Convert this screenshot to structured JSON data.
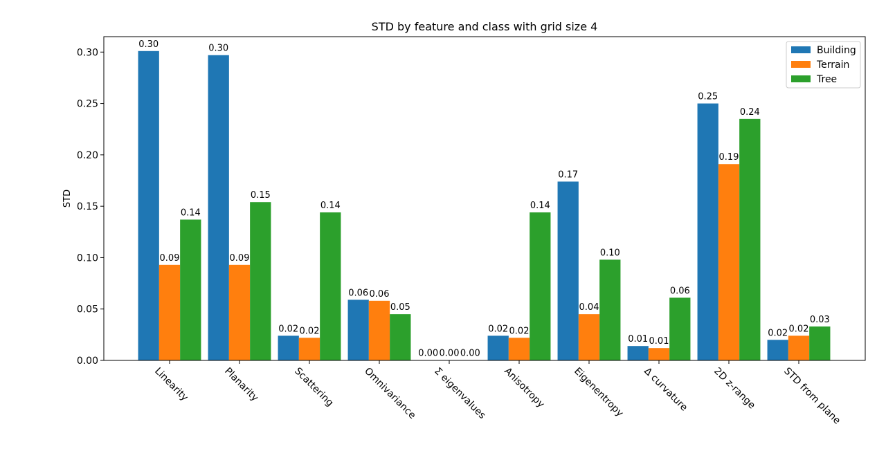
{
  "chart_data": {
    "type": "bar",
    "title": "STD by feature and class with grid size 4",
    "xlabel": "",
    "ylabel": "STD",
    "ylim": [
      0,
      0.315
    ],
    "yticks": [
      "0.00",
      "0.05",
      "0.10",
      "0.15",
      "0.20",
      "0.25",
      "0.30"
    ],
    "categories": [
      "Linearity",
      "Planarity",
      "Scattering",
      "Omnivariance",
      "Σ eigenvalues",
      "Anisotropy",
      "Eigenentropy",
      "Δ curvature",
      "2D z-range",
      "STD from plane"
    ],
    "series": [
      {
        "name": "Building",
        "color": "#1f77b4",
        "values": [
          0.301,
          0.297,
          0.024,
          0.059,
          0.0003,
          0.024,
          0.174,
          0.014,
          0.25,
          0.02
        ],
        "labels": [
          "0.30",
          "0.30",
          "0.02",
          "0.06",
          "0.00",
          "0.02",
          "0.17",
          "0.01",
          "0.25",
          "0.02"
        ]
      },
      {
        "name": "Terrain",
        "color": "#ff7f0e",
        "values": [
          0.093,
          0.093,
          0.022,
          0.058,
          0.0003,
          0.022,
          0.045,
          0.012,
          0.191,
          0.024
        ],
        "labels": [
          "0.09",
          "0.09",
          "0.02",
          "0.06",
          "0.00",
          "0.02",
          "0.04",
          "0.01",
          "0.19",
          "0.02"
        ]
      },
      {
        "name": "Tree",
        "color": "#2ca02c",
        "values": [
          0.137,
          0.154,
          0.144,
          0.045,
          0.0003,
          0.144,
          0.098,
          0.061,
          0.235,
          0.033
        ],
        "labels": [
          "0.14",
          "0.15",
          "0.14",
          "0.05",
          "0.00",
          "0.14",
          "0.10",
          "0.06",
          "0.24",
          "0.03"
        ]
      }
    ],
    "legend_position": "top-right",
    "grid": false
  }
}
